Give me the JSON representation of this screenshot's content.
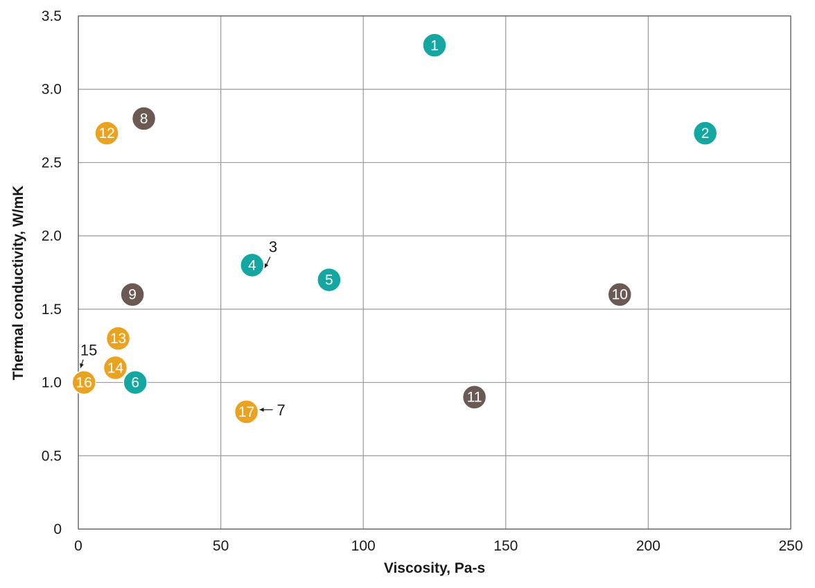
{
  "chart_data": {
    "type": "scatter",
    "xlabel": "Viscosity, Pa-s",
    "ylabel": "Thermal conductivity, W/mK",
    "xlim": [
      0,
      250
    ],
    "ylim": [
      0,
      3.5
    ],
    "xticks": [
      0,
      50,
      100,
      150,
      200,
      250
    ],
    "yticks": [
      0,
      0.5,
      1.0,
      1.5,
      2.0,
      2.5,
      3.0,
      3.5
    ],
    "ytick_labels": [
      "0",
      "0.5",
      "1.0",
      "1.5",
      "2.0",
      "2.5",
      "3.0",
      "3.5"
    ],
    "grid": true,
    "colors": {
      "teal": "#14a6a0",
      "brown": "#6b5a53",
      "orange": "#eaa321"
    },
    "points": [
      {
        "id": "1",
        "x": 125,
        "y": 3.3,
        "color": "teal"
      },
      {
        "id": "2",
        "x": 220,
        "y": 2.7,
        "color": "teal"
      },
      {
        "id": "3",
        "x": 62,
        "y": 1.8,
        "color": "teal",
        "callout": true
      },
      {
        "id": "4",
        "x": 61,
        "y": 1.8,
        "color": "teal"
      },
      {
        "id": "5",
        "x": 88,
        "y": 1.7,
        "color": "teal"
      },
      {
        "id": "6",
        "x": 20,
        "y": 1.0,
        "color": "teal"
      },
      {
        "id": "7",
        "x": 59,
        "y": 0.8,
        "color": "teal",
        "callout": true
      },
      {
        "id": "8",
        "x": 23,
        "y": 2.8,
        "color": "brown"
      },
      {
        "id": "9",
        "x": 19,
        "y": 1.6,
        "color": "brown"
      },
      {
        "id": "10",
        "x": 190,
        "y": 1.6,
        "color": "brown"
      },
      {
        "id": "11",
        "x": 139,
        "y": 0.9,
        "color": "brown"
      },
      {
        "id": "12",
        "x": 10,
        "y": 2.7,
        "color": "orange"
      },
      {
        "id": "13",
        "x": 14,
        "y": 1.3,
        "color": "orange"
      },
      {
        "id": "14",
        "x": 13,
        "y": 1.1,
        "color": "orange"
      },
      {
        "id": "15",
        "x": 1,
        "y": 1.0,
        "color": "orange",
        "callout": true
      },
      {
        "id": "16",
        "x": 2,
        "y": 1.0,
        "color": "orange"
      },
      {
        "id": "17",
        "x": 59,
        "y": 0.8,
        "color": "orange"
      }
    ]
  }
}
